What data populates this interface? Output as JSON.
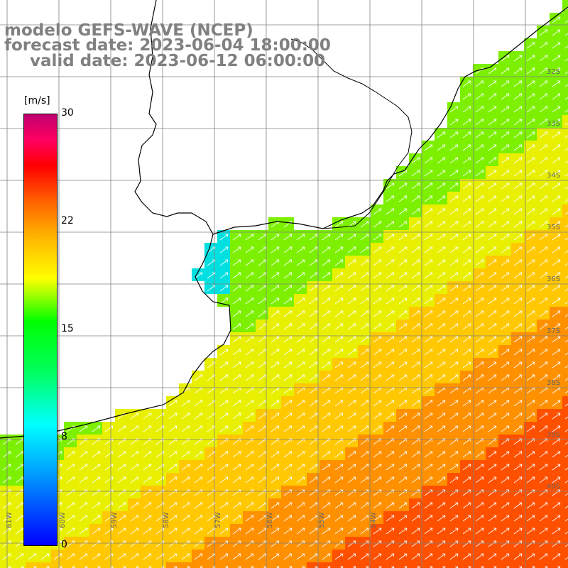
{
  "title": {
    "line1": "modelo GEFS-WAVE (NCEP)",
    "line2": "forecast date: 2023-06-04 18:00:00",
    "line3": "valid date: 2023-06-12 06:00:00"
  },
  "colorbar": {
    "unit": "[m/s]",
    "ticks": [
      "30",
      "22",
      "15",
      "8",
      "0"
    ]
  },
  "axes": {
    "lon_labels": [
      "61W",
      "60W",
      "59W",
      "58W",
      "57W",
      "56W",
      "55W",
      "54W"
    ],
    "lat_labels": [
      "32S",
      "33S",
      "34S",
      "35S",
      "36S",
      "37S",
      "38S",
      "39S",
      "40S"
    ]
  },
  "colors": {
    "blue": "#0080ff",
    "cyan": "#00e0e0",
    "green": "#00e000",
    "yellow": "#e8f000",
    "orange": "#ff9000",
    "red": "#ff5000",
    "land": "#ffffff",
    "grid": "#808080",
    "arrow": "#ffffff"
  },
  "field": {
    "description_legend": "wind speed field with direction arrows",
    "dominant_direction": "north-east"
  }
}
